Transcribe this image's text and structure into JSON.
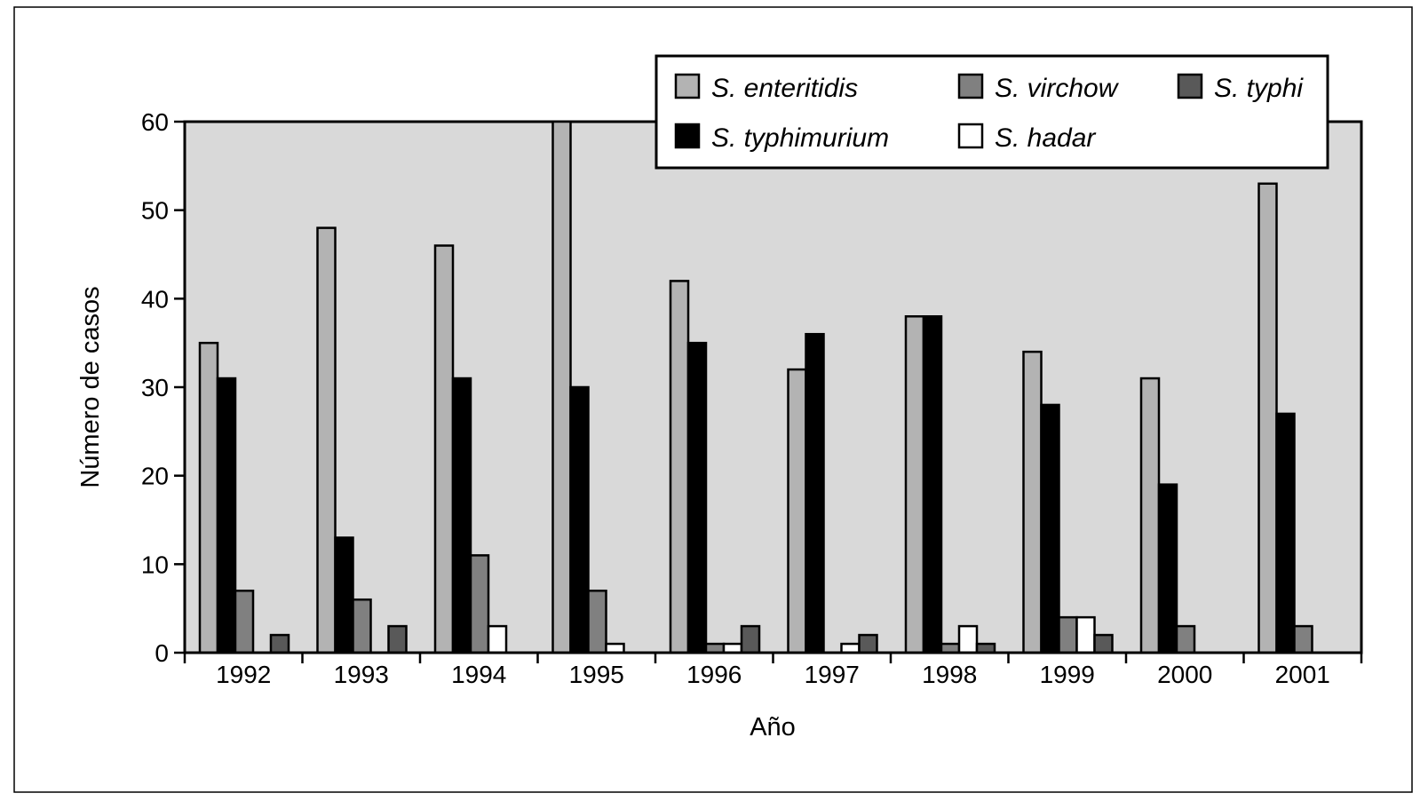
{
  "chart_data": {
    "type": "bar",
    "title": "",
    "xlabel": "Año",
    "ylabel": "Número de casos",
    "ylim": [
      0,
      60
    ],
    "yticks": [
      0,
      10,
      20,
      30,
      40,
      50,
      60
    ],
    "categories": [
      "1992",
      "1993",
      "1994",
      "1995",
      "1996",
      "1997",
      "1998",
      "1999",
      "2000",
      "2001"
    ],
    "grid": false,
    "legend_position": "top-right",
    "plot_background": "#d9d9d9",
    "series": [
      {
        "name": "S. enteritidis",
        "color": "#b3b3b3",
        "values": [
          35,
          48,
          46,
          60,
          42,
          32,
          38,
          34,
          31,
          53
        ]
      },
      {
        "name": "S. typhimurium",
        "color": "#000000",
        "values": [
          31,
          13,
          31,
          30,
          35,
          36,
          38,
          28,
          19,
          27
        ]
      },
      {
        "name": "S. virchow",
        "color": "#808080",
        "values": [
          7,
          6,
          11,
          7,
          1,
          0,
          1,
          4,
          3,
          3
        ]
      },
      {
        "name": "S. hadar",
        "color": "#ffffff",
        "values": [
          0,
          0,
          3,
          1,
          1,
          1,
          3,
          4,
          0,
          0
        ]
      },
      {
        "name": "S. typhi",
        "color": "#595959",
        "values": [
          2,
          3,
          0,
          0,
          3,
          2,
          1,
          2,
          0,
          0
        ]
      }
    ],
    "legend_order": [
      0,
      2,
      4,
      1,
      3
    ]
  }
}
